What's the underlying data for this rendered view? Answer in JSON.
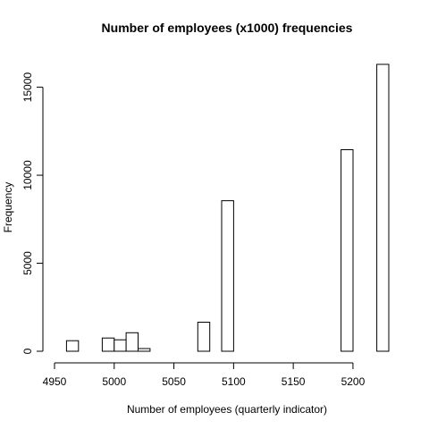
{
  "chart_data": {
    "type": "bar",
    "title": "Number of employees (x1000) frequencies",
    "xlabel": "Number of employees (quarterly indicator)",
    "ylabel": "Frequency",
    "bin_width": 10,
    "bins": [
      {
        "x0": 4960,
        "x1": 4970,
        "value": 600
      },
      {
        "x0": 4970,
        "x1": 4980,
        "value": 0
      },
      {
        "x0": 4980,
        "x1": 4990,
        "value": 0
      },
      {
        "x0": 4990,
        "x1": 5000,
        "value": 750
      },
      {
        "x0": 5000,
        "x1": 5010,
        "value": 650
      },
      {
        "x0": 5010,
        "x1": 5020,
        "value": 1050
      },
      {
        "x0": 5020,
        "x1": 5030,
        "value": 150
      },
      {
        "x0": 5030,
        "x1": 5040,
        "value": 0
      },
      {
        "x0": 5040,
        "x1": 5050,
        "value": 0
      },
      {
        "x0": 5050,
        "x1": 5060,
        "value": 0
      },
      {
        "x0": 5060,
        "x1": 5070,
        "value": 0
      },
      {
        "x0": 5070,
        "x1": 5080,
        "value": 1650
      },
      {
        "x0": 5080,
        "x1": 5090,
        "value": 0
      },
      {
        "x0": 5090,
        "x1": 5100,
        "value": 8550
      },
      {
        "x0": 5100,
        "x1": 5110,
        "value": 0
      },
      {
        "x0": 5110,
        "x1": 5120,
        "value": 0
      },
      {
        "x0": 5120,
        "x1": 5130,
        "value": 0
      },
      {
        "x0": 5130,
        "x1": 5140,
        "value": 0
      },
      {
        "x0": 5140,
        "x1": 5150,
        "value": 0
      },
      {
        "x0": 5150,
        "x1": 5160,
        "value": 0
      },
      {
        "x0": 5160,
        "x1": 5170,
        "value": 0
      },
      {
        "x0": 5170,
        "x1": 5180,
        "value": 0
      },
      {
        "x0": 5180,
        "x1": 5190,
        "value": 0
      },
      {
        "x0": 5190,
        "x1": 5200,
        "value": 11450
      },
      {
        "x0": 5200,
        "x1": 5210,
        "value": 0
      },
      {
        "x0": 5210,
        "x1": 5220,
        "value": 0
      },
      {
        "x0": 5220,
        "x1": 5230,
        "value": 16300
      }
    ],
    "xlim": [
      4950,
      5230
    ],
    "ylim": [
      0,
      16300
    ],
    "xticks": [
      4950,
      5000,
      5050,
      5100,
      5150,
      5200
    ],
    "yticks": [
      0,
      5000,
      10000,
      15000
    ],
    "grid": false,
    "legend": "none"
  }
}
